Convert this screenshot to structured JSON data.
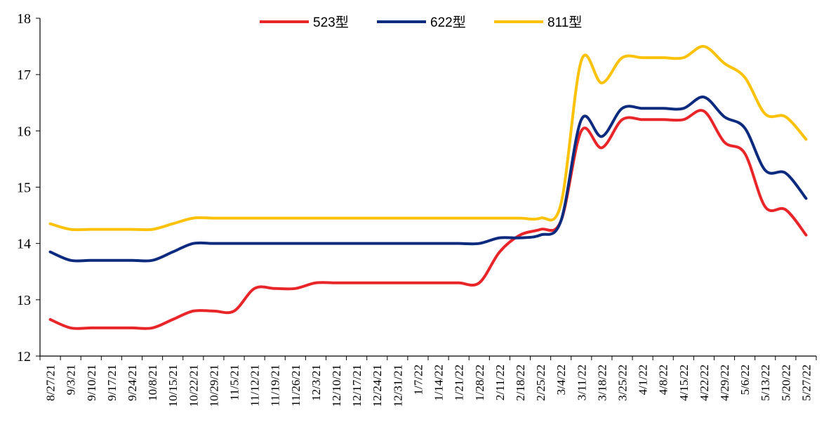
{
  "chart_data": {
    "type": "line",
    "title": "",
    "xlabel": "",
    "ylabel": "",
    "ylim": [
      12,
      18
    ],
    "yticks": [
      12,
      13,
      14,
      15,
      16,
      17,
      18
    ],
    "grid": false,
    "legend": "top-center",
    "x_labels": [
      "8/27/21",
      "9/3/21",
      "9/10/21",
      "9/17/21",
      "9/24/21",
      "10/8/21",
      "10/15/21",
      "10/22/21",
      "10/29/21",
      "11/5/21",
      "11/12/21",
      "11/19/21",
      "11/26/21",
      "12/3/21",
      "12/10/21",
      "12/17/21",
      "12/24/21",
      "12/31/21",
      "1/7/22",
      "1/14/22",
      "1/21/22",
      "1/28/22",
      "2/11/22",
      "2/18/22",
      "2/25/22",
      "3/4/22",
      "3/11/22",
      "3/18/22",
      "3/25/22",
      "4/1/22",
      "4/8/22",
      "4/15/22",
      "4/22/22",
      "4/29/22",
      "5/6/22",
      "5/13/22",
      "5/20/22",
      "5/27/22"
    ],
    "series": [
      {
        "name": "523型",
        "color": "#e8262a",
        "values": [
          12.65,
          12.5,
          12.5,
          12.5,
          12.5,
          12.5,
          12.65,
          12.8,
          12.8,
          12.8,
          13.2,
          13.2,
          13.2,
          13.3,
          13.3,
          13.3,
          13.3,
          13.3,
          13.3,
          13.3,
          13.3,
          13.3,
          13.85,
          14.15,
          14.25,
          14.4,
          16.0,
          15.7,
          16.2,
          16.2,
          16.2,
          16.2,
          16.35,
          15.8,
          15.6,
          14.65,
          14.6,
          14.15
        ]
      },
      {
        "name": "622型",
        "color": "#0d2b7e",
        "values": [
          13.85,
          13.7,
          13.7,
          13.7,
          13.7,
          13.7,
          13.85,
          14.0,
          14.0,
          14.0,
          14.0,
          14.0,
          14.0,
          14.0,
          14.0,
          14.0,
          14.0,
          14.0,
          14.0,
          14.0,
          14.0,
          14.0,
          14.1,
          14.1,
          14.15,
          14.4,
          16.2,
          15.9,
          16.4,
          16.4,
          16.4,
          16.4,
          16.6,
          16.25,
          16.05,
          15.3,
          15.25,
          14.8
        ]
      },
      {
        "name": "811型",
        "color": "#fcc20a",
        "values": [
          14.35,
          14.25,
          14.25,
          14.25,
          14.25,
          14.25,
          14.35,
          14.45,
          14.45,
          14.45,
          14.45,
          14.45,
          14.45,
          14.45,
          14.45,
          14.45,
          14.45,
          14.45,
          14.45,
          14.45,
          14.45,
          14.45,
          14.45,
          14.45,
          14.45,
          14.7,
          17.25,
          16.85,
          17.3,
          17.3,
          17.3,
          17.3,
          17.5,
          17.2,
          16.95,
          16.3,
          16.25,
          15.85
        ]
      }
    ]
  }
}
